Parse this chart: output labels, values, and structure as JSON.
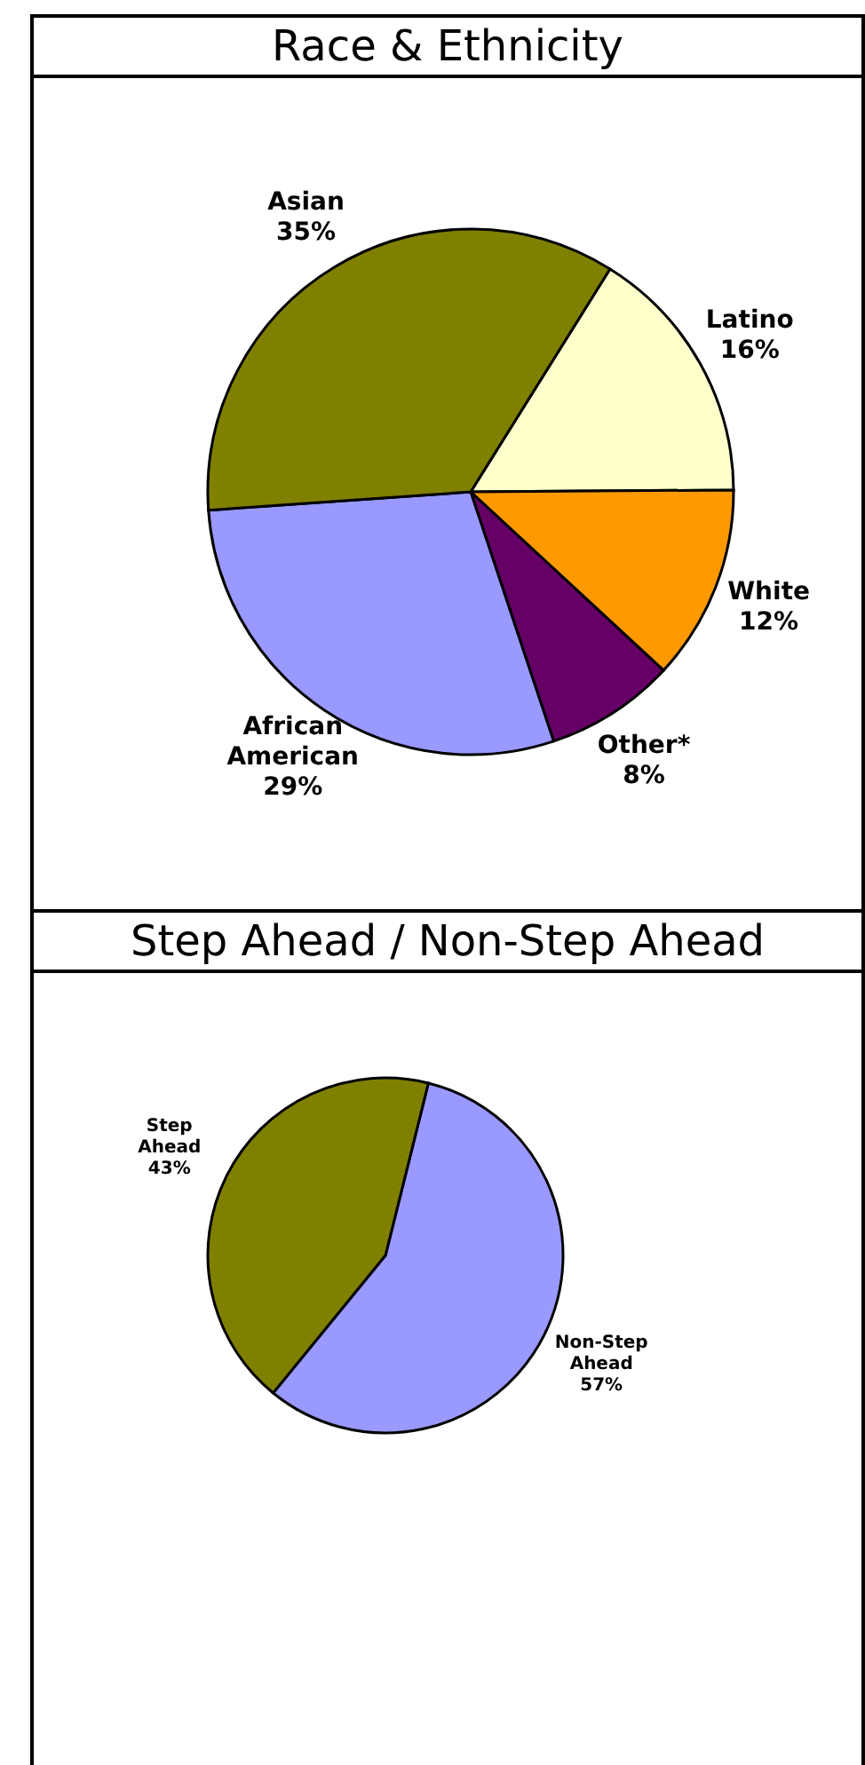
{
  "chart_data": [
    {
      "type": "pie",
      "title": "Race & Ethnicity",
      "categories": [
        "Latino",
        "White",
        "Other*",
        "African American",
        "Asian"
      ],
      "values": [
        16,
        12,
        8,
        29,
        35
      ],
      "colors": [
        "#ffffcc",
        "#ff9900",
        "#660066",
        "#9999ff",
        "#808000"
      ],
      "value_labels": [
        "16%",
        "12%",
        "8%",
        "29%",
        "35%"
      ]
    },
    {
      "type": "pie",
      "title": "Step Ahead / Non-Step Ahead",
      "categories": [
        "Non-Step Ahead",
        "Step Ahead"
      ],
      "values": [
        57,
        43
      ],
      "colors": [
        "#9999ff",
        "#808000"
      ],
      "value_labels": [
        "57%",
        "43%"
      ]
    }
  ]
}
